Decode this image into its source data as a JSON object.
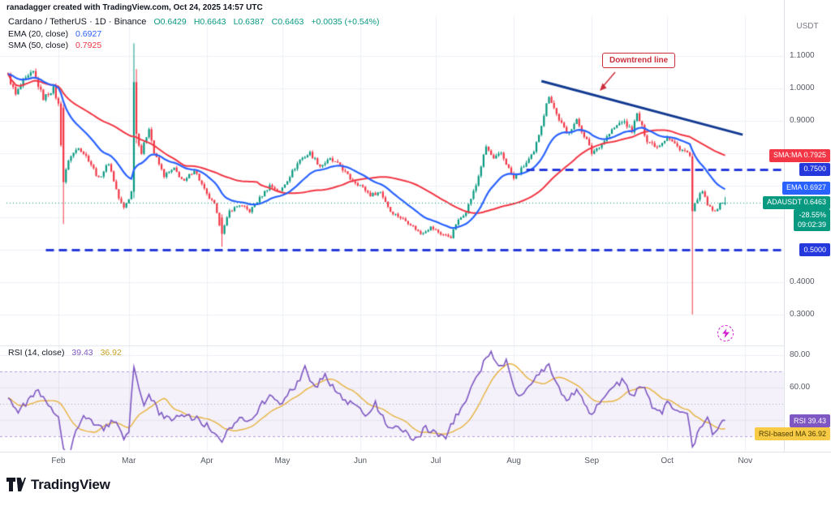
{
  "watermark": "ranadagger created with TradingView.com, Oct 24, 2025 14:57 UTC",
  "header": {
    "title": "Cardano / TetherUS · 1D · Binance",
    "o": "O0.6429",
    "h": "H0.6643",
    "l": "L0.6387",
    "c": "C0.6463",
    "change": "+0.0035 (+0.54%)"
  },
  "indicators": {
    "ema_label": "EMA (20, close)",
    "ema_value": "0.6927",
    "sma_label": "SMA (50, close)",
    "sma_value": "0.7925",
    "rsi_label": "RSI (14, close)",
    "rsi_value": "39.43",
    "rsi_ma_value": "36.92"
  },
  "annotation": {
    "downtrend": "Downtrend line"
  },
  "price_axis": {
    "currency": "USDT",
    "ticks": [
      {
        "label": "1.1000",
        "value": 1.1
      },
      {
        "label": "1.0000",
        "value": 1.0
      },
      {
        "label": "0.9000",
        "value": 0.9
      },
      {
        "label": "0.4000",
        "value": 0.4
      },
      {
        "label": "0.3000",
        "value": 0.3
      }
    ],
    "badges": [
      {
        "name": "sma-price-badge",
        "label": "SMA:MA 0.7925",
        "pos": 0.7925,
        "bg": "#f23645",
        "fg": "#ffffff"
      },
      {
        "name": "level-075-badge",
        "label": "0.7500",
        "pos": 0.75,
        "bg": "#2438dc",
        "fg": "#ffffff"
      },
      {
        "name": "ema-price-badge",
        "label": "EMA 0.6927",
        "pos": 0.6927,
        "bg": "#2962ff",
        "fg": "#ffffff"
      },
      {
        "name": "last-price-badge",
        "label": "ADAUSDT 0.6463",
        "pos": 0.6463,
        "bg": "#089981",
        "fg": "#ffffff"
      },
      {
        "name": "countdown-badge",
        "label": "-28.55%",
        "label2": "09:02:39",
        "pos": 0.5935,
        "bg": "#089981",
        "fg": "#ffffff"
      },
      {
        "name": "level-050-badge",
        "label": "0.5000",
        "pos": 0.5,
        "bg": "#2438dc",
        "fg": "#ffffff"
      }
    ]
  },
  "rsi_axis": {
    "ticks": [
      {
        "label": "80.00",
        "value": 80
      },
      {
        "label": "60.00",
        "value": 60
      }
    ],
    "badges": [
      {
        "name": "rsi-value-badge",
        "label": "RSI 39.43",
        "pos": 39.43,
        "bg": "#7e57c2",
        "fg": "#ffffff"
      },
      {
        "name": "rsi-ma-value-badge",
        "label": "RSI-based MA 36.92",
        "pos": 31.5,
        "bg": "#f7cb45",
        "fg": "#4a3a00"
      }
    ]
  },
  "time_axis": {
    "months": [
      {
        "label": "Feb",
        "t": 20
      },
      {
        "label": "Mar",
        "t": 48
      },
      {
        "label": "Apr",
        "t": 79
      },
      {
        "label": "May",
        "t": 109
      },
      {
        "label": "Jun",
        "t": 140
      },
      {
        "label": "Jul",
        "t": 170
      },
      {
        "label": "Aug",
        "t": 201
      },
      {
        "label": "Sep",
        "t": 232
      },
      {
        "label": "Oct",
        "t": 262
      },
      {
        "label": "Nov",
        "t": 293
      }
    ]
  },
  "logo": "TradingView",
  "colors": {
    "up": "#089981",
    "down": "#f23645",
    "ema": "#2962ff",
    "sma": "#f23645",
    "rsi": "#7e57c2",
    "rsi_ma": "#e8b33e",
    "level_blue": "#2438dc",
    "trendline": "#123a91",
    "annotation_red": "#cc2f3c",
    "band_fill": "rgba(103,58,183,0.07)",
    "band_edge": "#b39ddb",
    "mid_line": "#a7a3c9",
    "grid": "#eef0f4",
    "divider": "#e0e3eb"
  },
  "chart_data": {
    "type": "candlestick",
    "symbol": "ADAUSDT",
    "exchange": "Binance",
    "timeframe": "1D",
    "title": "Cardano / TetherUS daily chart with EMA(20), SMA(50), RSI(14)",
    "ylim": [
      0.28,
      1.17
    ],
    "days_total": 286,
    "last_candle": {
      "o": 0.6429,
      "h": 0.6643,
      "l": 0.6387,
      "c": 0.6463
    },
    "current_price": 0.6463,
    "ema_period": 20,
    "sma_period": 50,
    "rsi_period": 14,
    "ema_value": 0.6927,
    "sma_value": 0.7925,
    "rsi_value": 39.43,
    "rsi_ma_value": 36.92,
    "price_grid": [
      1.1,
      1.0,
      0.9,
      0.8,
      0.7,
      0.6,
      0.5,
      0.4,
      0.3
    ],
    "rsi_grid": [
      80,
      60,
      40
    ],
    "rsi_band": [
      30,
      70
    ],
    "rsi_mid": 50,
    "price_keypoints": [
      [
        0,
        1.04
      ],
      [
        3,
        0.98
      ],
      [
        6,
        1.02
      ],
      [
        10,
        1.05
      ],
      [
        14,
        0.97
      ],
      [
        18,
        1.0
      ],
      [
        20,
        0.95
      ],
      [
        22,
        0.71
      ],
      [
        24,
        0.78
      ],
      [
        28,
        0.82
      ],
      [
        32,
        0.78
      ],
      [
        36,
        0.72
      ],
      [
        40,
        0.77
      ],
      [
        44,
        0.66
      ],
      [
        46,
        0.63
      ],
      [
        48,
        0.66
      ],
      [
        49,
        0.68
      ],
      [
        50,
        1.02
      ],
      [
        51,
        0.86
      ],
      [
        53,
        0.8
      ],
      [
        56,
        0.88
      ],
      [
        58,
        0.8
      ],
      [
        62,
        0.73
      ],
      [
        66,
        0.75
      ],
      [
        70,
        0.71
      ],
      [
        74,
        0.75
      ],
      [
        79,
        0.67
      ],
      [
        82,
        0.64
      ],
      [
        85,
        0.55
      ],
      [
        88,
        0.62
      ],
      [
        92,
        0.64
      ],
      [
        96,
        0.62
      ],
      [
        100,
        0.66
      ],
      [
        104,
        0.7
      ],
      [
        108,
        0.68
      ],
      [
        112,
        0.73
      ],
      [
        116,
        0.78
      ],
      [
        120,
        0.8
      ],
      [
        124,
        0.76
      ],
      [
        128,
        0.78
      ],
      [
        132,
        0.76
      ],
      [
        136,
        0.72
      ],
      [
        140,
        0.7
      ],
      [
        144,
        0.67
      ],
      [
        148,
        0.68
      ],
      [
        152,
        0.62
      ],
      [
        156,
        0.6
      ],
      [
        160,
        0.58
      ],
      [
        164,
        0.55
      ],
      [
        168,
        0.57
      ],
      [
        172,
        0.55
      ],
      [
        176,
        0.54
      ],
      [
        178,
        0.58
      ],
      [
        182,
        0.62
      ],
      [
        186,
        0.7
      ],
      [
        190,
        0.82
      ],
      [
        193,
        0.78
      ],
      [
        196,
        0.8
      ],
      [
        201,
        0.72
      ],
      [
        205,
        0.76
      ],
      [
        209,
        0.8
      ],
      [
        213,
        0.92
      ],
      [
        215,
        0.98
      ],
      [
        218,
        0.92
      ],
      [
        222,
        0.86
      ],
      [
        226,
        0.9
      ],
      [
        230,
        0.84
      ],
      [
        232,
        0.8
      ],
      [
        236,
        0.83
      ],
      [
        240,
        0.87
      ],
      [
        244,
        0.9
      ],
      [
        248,
        0.87
      ],
      [
        250,
        0.92
      ],
      [
        254,
        0.84
      ],
      [
        258,
        0.82
      ],
      [
        262,
        0.85
      ],
      [
        266,
        0.82
      ],
      [
        270,
        0.8
      ],
      [
        271,
        0.79
      ],
      [
        272,
        0.62
      ],
      [
        274,
        0.66
      ],
      [
        276,
        0.68
      ],
      [
        278,
        0.64
      ],
      [
        280,
        0.62
      ],
      [
        282,
        0.63
      ],
      [
        284,
        0.65
      ],
      [
        285,
        0.6463
      ]
    ],
    "special_candles": [
      {
        "t": 22,
        "o": 0.94,
        "h": 0.95,
        "l": 0.58,
        "c": 0.71
      },
      {
        "t": 50,
        "o": 0.68,
        "h": 1.14,
        "l": 0.66,
        "c": 1.02
      },
      {
        "t": 51,
        "o": 1.02,
        "h": 1.06,
        "l": 0.83,
        "c": 0.86
      },
      {
        "t": 85,
        "o": 0.6,
        "h": 0.61,
        "l": 0.51,
        "c": 0.55
      },
      {
        "t": 272,
        "o": 0.79,
        "h": 0.8,
        "l": 0.3,
        "c": 0.62
      },
      {
        "t": 285,
        "o": 0.6429,
        "h": 0.6643,
        "l": 0.6387,
        "c": 0.6463
      }
    ],
    "levels": [
      {
        "price": 0.75,
        "t_start": 206,
        "t_end": 308,
        "style": "dashed",
        "label": "0.7500"
      },
      {
        "price": 0.5,
        "t_start": 15,
        "t_end": 308,
        "style": "dashed",
        "label": "0.5000"
      }
    ],
    "trendline": {
      "t1": 212,
      "p1": 1.023,
      "t2": 292,
      "p2": 0.857,
      "label": "Downtrend line"
    },
    "rsi_keypoints": [
      [
        0,
        55
      ],
      [
        4,
        45
      ],
      [
        8,
        52
      ],
      [
        12,
        58
      ],
      [
        16,
        48
      ],
      [
        20,
        42
      ],
      [
        22,
        24
      ],
      [
        24,
        18
      ],
      [
        26,
        30
      ],
      [
        30,
        42
      ],
      [
        34,
        38
      ],
      [
        38,
        35
      ],
      [
        42,
        40
      ],
      [
        46,
        28
      ],
      [
        48,
        33
      ],
      [
        50,
        73
      ],
      [
        52,
        60
      ],
      [
        54,
        50
      ],
      [
        56,
        55
      ],
      [
        60,
        45
      ],
      [
        64,
        40
      ],
      [
        68,
        44
      ],
      [
        72,
        42
      ],
      [
        76,
        40
      ],
      [
        80,
        35
      ],
      [
        85,
        25
      ],
      [
        88,
        35
      ],
      [
        92,
        42
      ],
      [
        96,
        40
      ],
      [
        100,
        48
      ],
      [
        104,
        55
      ],
      [
        108,
        50
      ],
      [
        112,
        58
      ],
      [
        116,
        64
      ],
      [
        118,
        72
      ],
      [
        122,
        60
      ],
      [
        126,
        68
      ],
      [
        130,
        58
      ],
      [
        134,
        52
      ],
      [
        138,
        48
      ],
      [
        142,
        44
      ],
      [
        146,
        50
      ],
      [
        150,
        38
      ],
      [
        154,
        35
      ],
      [
        158,
        32
      ],
      [
        162,
        28
      ],
      [
        166,
        35
      ],
      [
        170,
        32
      ],
      [
        174,
        30
      ],
      [
        178,
        42
      ],
      [
        182,
        52
      ],
      [
        186,
        65
      ],
      [
        190,
        78
      ],
      [
        192,
        83
      ],
      [
        195,
        72
      ],
      [
        198,
        76
      ],
      [
        201,
        60
      ],
      [
        204,
        55
      ],
      [
        207,
        62
      ],
      [
        211,
        68
      ],
      [
        215,
        75
      ],
      [
        218,
        62
      ],
      [
        222,
        50
      ],
      [
        226,
        60
      ],
      [
        230,
        48
      ],
      [
        232,
        44
      ],
      [
        236,
        52
      ],
      [
        240,
        58
      ],
      [
        244,
        65
      ],
      [
        248,
        55
      ],
      [
        252,
        62
      ],
      [
        256,
        48
      ],
      [
        260,
        45
      ],
      [
        262,
        52
      ],
      [
        266,
        46
      ],
      [
        270,
        44
      ],
      [
        272,
        22
      ],
      [
        275,
        35
      ],
      [
        278,
        40
      ],
      [
        280,
        32
      ],
      [
        283,
        38
      ],
      [
        285,
        39.43
      ]
    ]
  }
}
